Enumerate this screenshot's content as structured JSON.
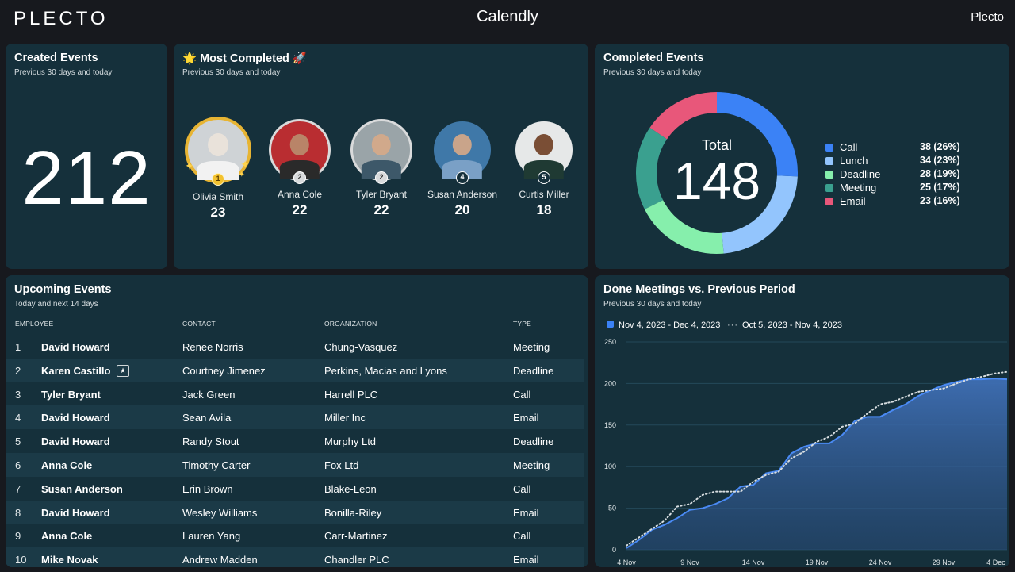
{
  "header": {
    "logo": "PLECTO",
    "title": "Calendly",
    "brand": "Plecto"
  },
  "created": {
    "title": "Created Events",
    "subtitle": "Previous 30 days and today",
    "value": "212"
  },
  "most_completed": {
    "title": "🌟 Most Completed 🚀",
    "subtitle": "Previous 30 days and today",
    "people": [
      {
        "name": "Olivia Smith",
        "value": "23",
        "rank": "1"
      },
      {
        "name": "Anna Cole",
        "value": "22",
        "rank": "2"
      },
      {
        "name": "Tyler Bryant",
        "value": "22",
        "rank": "2"
      },
      {
        "name": "Susan Anderson",
        "value": "20",
        "rank": "4"
      },
      {
        "name": "Curtis Miller",
        "value": "18",
        "rank": "5"
      }
    ]
  },
  "completed": {
    "title": "Completed Events",
    "subtitle": "Previous 30 days and today",
    "total_label": "Total",
    "total": "148",
    "segments": [
      {
        "label": "Call",
        "display": "38 (26%)",
        "value": 38,
        "color": "#3b82f6"
      },
      {
        "label": "Lunch",
        "display": "34 (23%)",
        "value": 34,
        "color": "#93c5fd"
      },
      {
        "label": "Deadline",
        "display": "28 (19%)",
        "value": 28,
        "color": "#86efac"
      },
      {
        "label": "Meeting",
        "display": "25 (17%)",
        "value": 25,
        "color": "#3aa08f"
      },
      {
        "label": "Email",
        "display": "23 (16%)",
        "value": 23,
        "color": "#e8577a"
      }
    ]
  },
  "upcoming": {
    "title": "Upcoming Events",
    "subtitle": "Today and next 14 days",
    "headers": {
      "employee": "EMPLOYEE",
      "contact": "CONTACT",
      "organization": "ORGANIZATION",
      "type": "TYPE"
    },
    "rows": [
      {
        "idx": "1",
        "employee": "David Howard",
        "contact": "Renee Norris",
        "organization": "Chung-Vasquez",
        "type": "Meeting"
      },
      {
        "idx": "2",
        "employee": "Karen Castillo",
        "contact": "Courtney Jimenez",
        "organization": "Perkins, Macias and Lyons",
        "type": "Deadline"
      },
      {
        "idx": "3",
        "employee": "Tyler Bryant",
        "contact": "Jack Green",
        "organization": "Harrell PLC",
        "type": "Call"
      },
      {
        "idx": "4",
        "employee": "David Howard",
        "contact": "Sean Avila",
        "organization": "Miller Inc",
        "type": "Email"
      },
      {
        "idx": "5",
        "employee": "David Howard",
        "contact": "Randy Stout",
        "organization": "Murphy Ltd",
        "type": "Deadline"
      },
      {
        "idx": "6",
        "employee": "Anna Cole",
        "contact": "Timothy Carter",
        "organization": "Fox Ltd",
        "type": "Meeting"
      },
      {
        "idx": "7",
        "employee": "Susan Anderson",
        "contact": "Erin Brown",
        "organization": "Blake-Leon",
        "type": "Call"
      },
      {
        "idx": "8",
        "employee": "David Howard",
        "contact": "Wesley Williams",
        "organization": "Bonilla-Riley",
        "type": "Email"
      },
      {
        "idx": "9",
        "employee": "Anna Cole",
        "contact": "Lauren Yang",
        "organization": "Carr-Martinez",
        "type": "Call"
      },
      {
        "idx": "10",
        "employee": "Mike Novak",
        "contact": "Andrew Madden",
        "organization": "Chandler PLC",
        "type": "Email"
      }
    ]
  },
  "done_meetings": {
    "title": "Done Meetings vs. Previous Period",
    "subtitle": "Previous 30 days and today"
  },
  "chart_data": {
    "type": "area",
    "title": "Done Meetings vs. Previous Period",
    "ylim": [
      0,
      250
    ],
    "yticks": [
      "0",
      "50",
      "100",
      "150",
      "200",
      "250"
    ],
    "xticks": [
      "4 Nov",
      "9 Nov",
      "14 Nov",
      "19 Nov",
      "24 Nov",
      "29 Nov",
      "4 Dec"
    ],
    "series": [
      {
        "name": "Nov 4, 2023 - Dec 4, 2023",
        "style": "area",
        "values": [
          2,
          12,
          24,
          30,
          38,
          48,
          50,
          55,
          62,
          76,
          78,
          92,
          95,
          116,
          124,
          128,
          128,
          138,
          155,
          160,
          160,
          168,
          175,
          185,
          192,
          198,
          202,
          205,
          205,
          206,
          205
        ]
      },
      {
        "name": "Oct 5, 2023 - Nov 4, 2023",
        "style": "dotted",
        "values": [
          5,
          15,
          25,
          35,
          52,
          55,
          66,
          70,
          70,
          70,
          82,
          90,
          94,
          110,
          118,
          130,
          136,
          148,
          152,
          164,
          175,
          178,
          184,
          190,
          192,
          194,
          200,
          205,
          208,
          212,
          214
        ]
      }
    ]
  }
}
